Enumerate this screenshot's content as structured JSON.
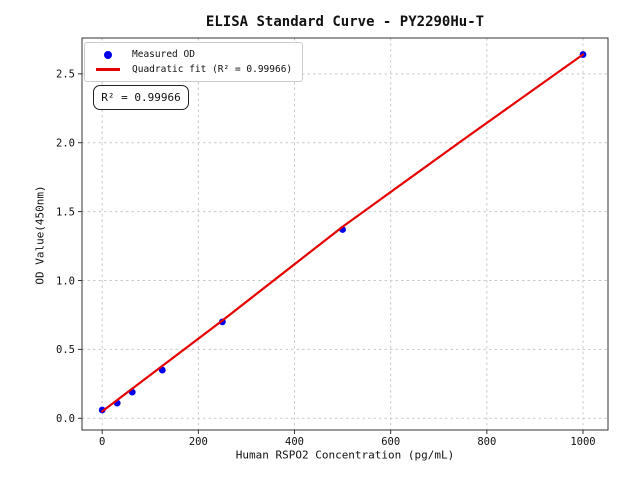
{
  "title": "ELISA Standard Curve - PY2290Hu-T",
  "axes": {
    "xlabel": "Human RSPO2 Concentration (pg/mL)",
    "ylabel": "OD Value(450nm)"
  },
  "legend": {
    "items": [
      {
        "label": "Measured OD",
        "marker": "circle",
        "color": "#0000ee"
      },
      {
        "label": "Quadratic fit (R² = 0.99966)",
        "marker": "line",
        "color": "#e50000"
      }
    ]
  },
  "annotation": {
    "text": "R² = 0.99966"
  },
  "colors": {
    "marker": "#0000ee",
    "fit_line": "#e50000",
    "grid": "#c9c9c9",
    "spine": "#333333",
    "tick_text": "#111111"
  },
  "chart_data": {
    "type": "scatter",
    "title": "ELISA Standard Curve - PY2290Hu-T",
    "xlabel": "Human RSPO2 Concentration (pg/mL)",
    "ylabel": "OD Value(450nm)",
    "xlim": [
      -42,
      1052
    ],
    "ylim": [
      -0.085,
      2.76
    ],
    "x_ticks": [
      0,
      200,
      400,
      600,
      800,
      1000
    ],
    "y_ticks": [
      0.0,
      0.5,
      1.0,
      1.5,
      2.0,
      2.5
    ],
    "grid": true,
    "grid_style": "dashed",
    "legend_position": "upper-left",
    "series": [
      {
        "name": "Measured OD",
        "type": "scatter",
        "color": "#0000ee",
        "x": [
          0,
          31.25,
          62.5,
          125,
          250,
          500,
          1000
        ],
        "y": [
          0.06,
          0.11,
          0.19,
          0.35,
          0.7,
          1.37,
          2.64
        ]
      },
      {
        "name": "Quadratic fit",
        "type": "line",
        "color": "#e50000",
        "r_squared": 0.99966,
        "x": [
          0,
          250,
          500,
          750,
          1000
        ],
        "y": [
          0.05,
          0.71,
          1.39,
          2.02,
          2.64
        ]
      }
    ]
  }
}
